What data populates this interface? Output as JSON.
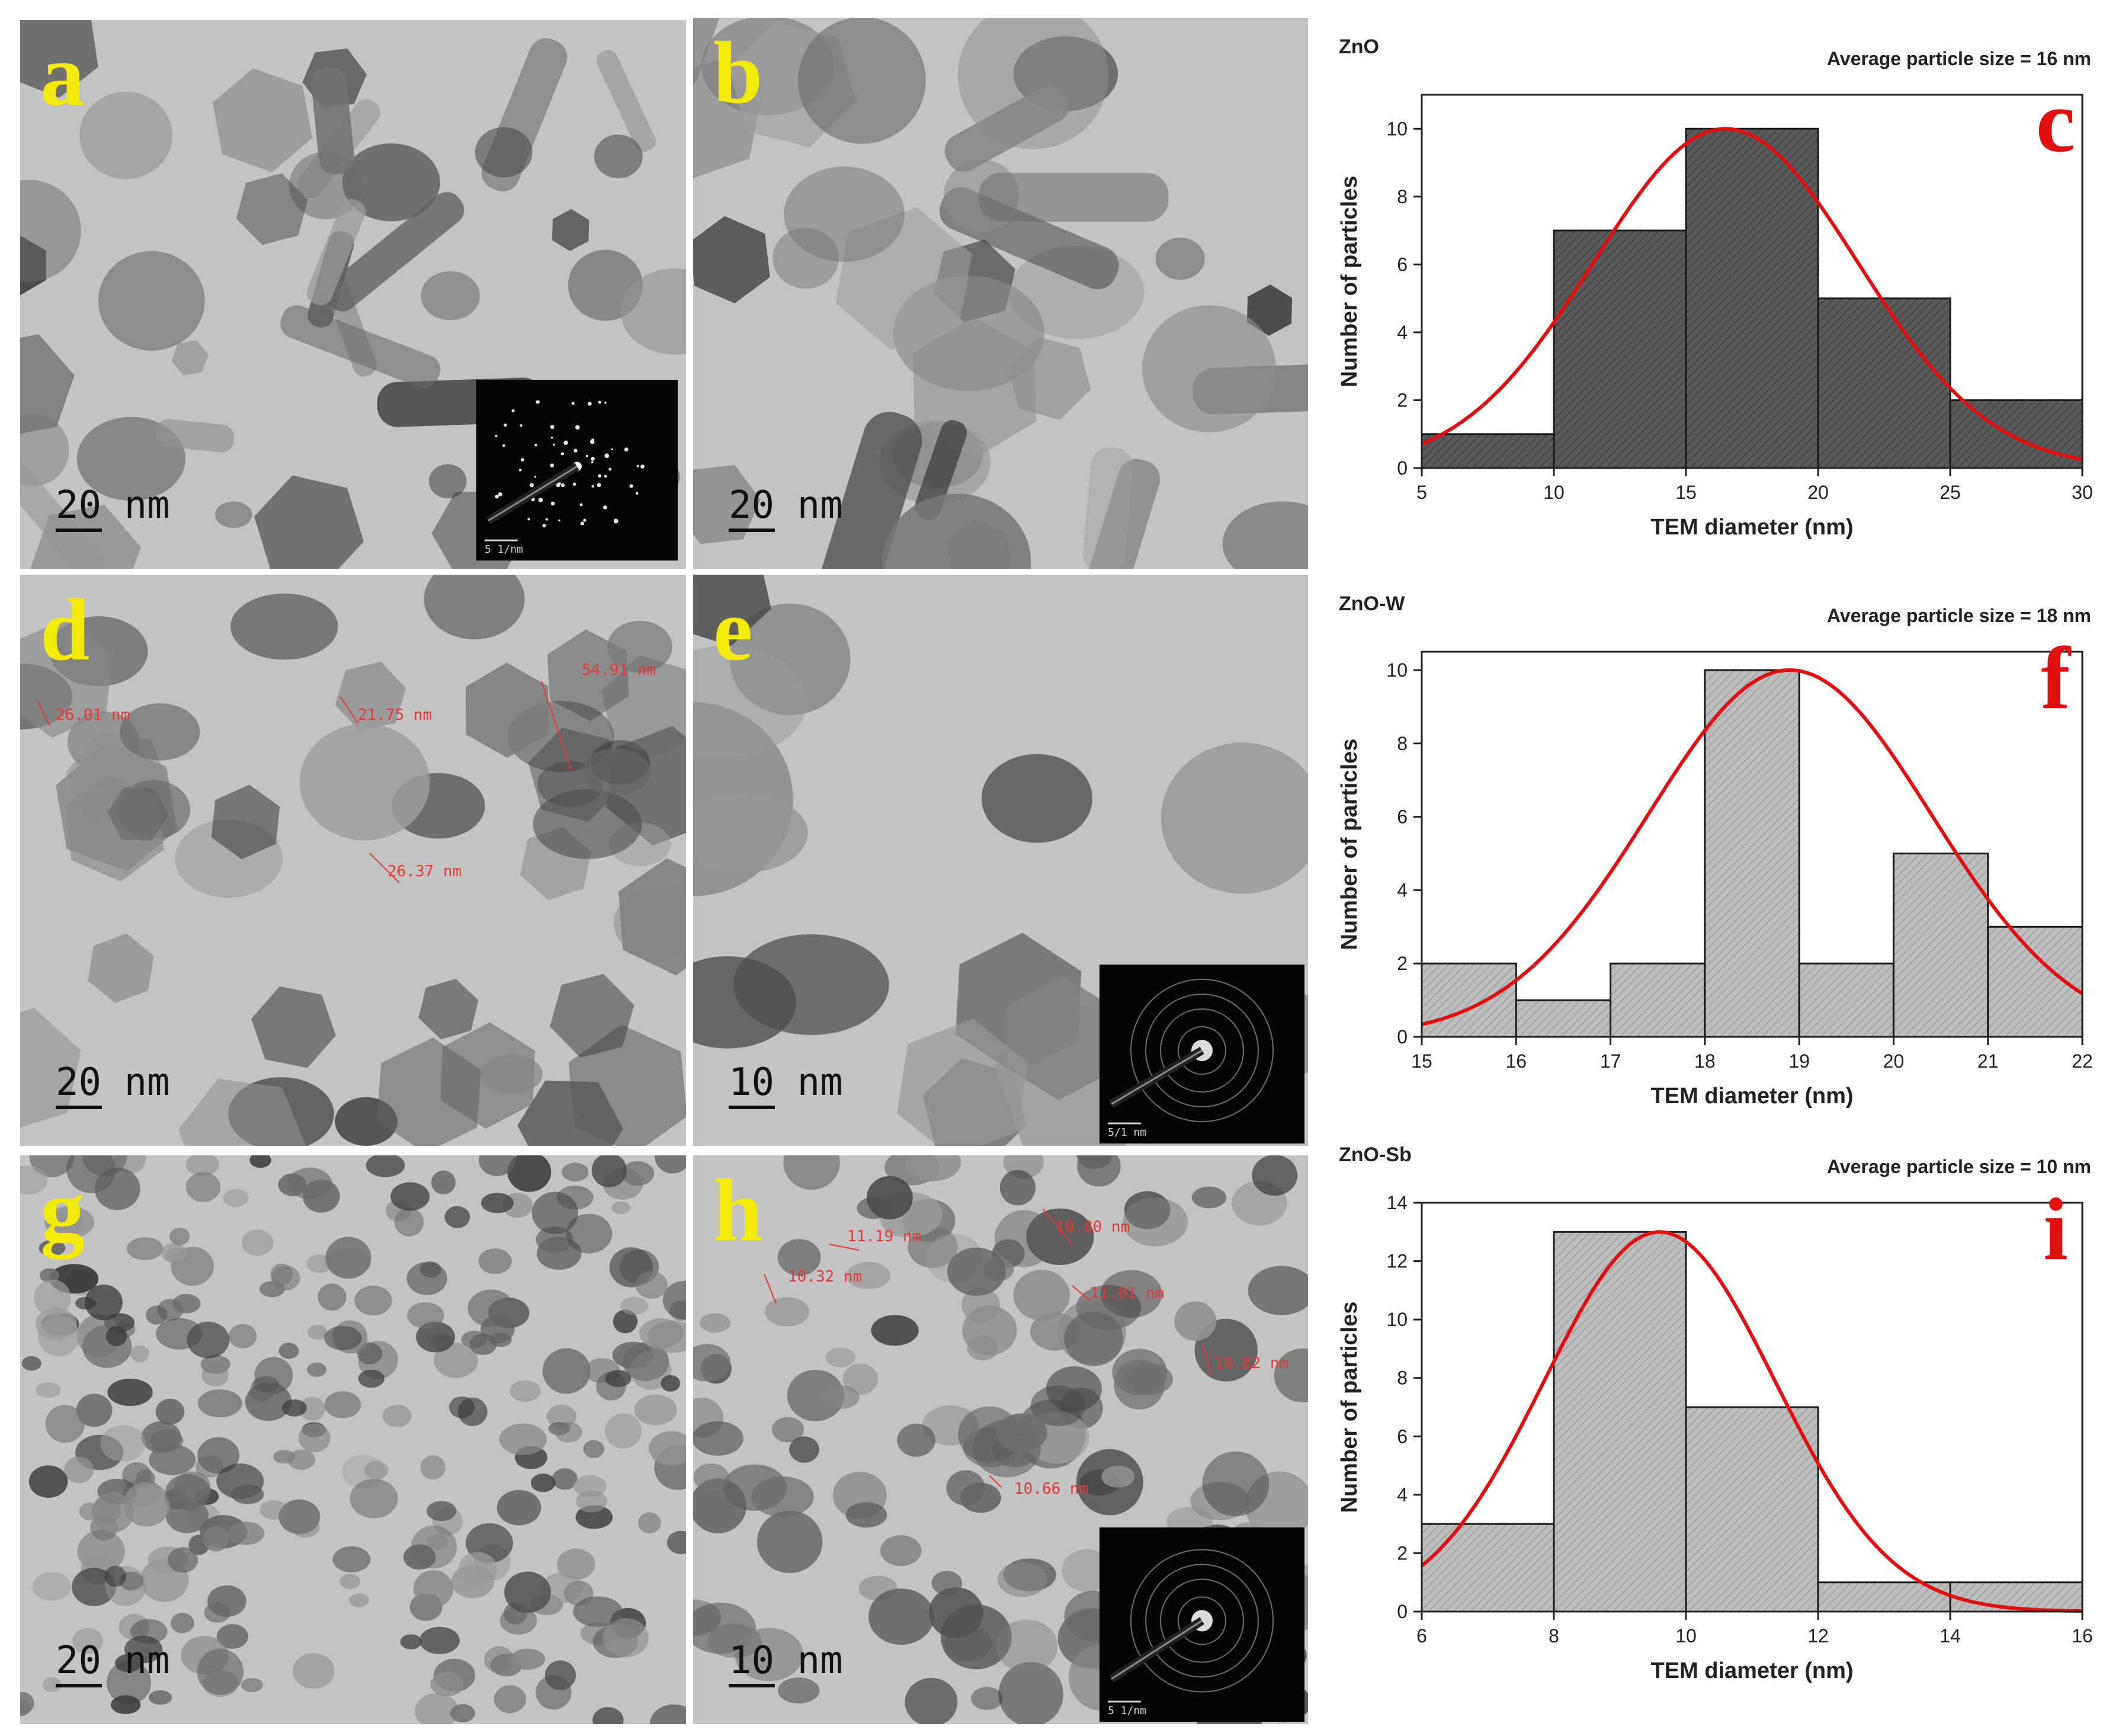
{
  "figure": {
    "panels": [
      {
        "id": "a",
        "letter": "a",
        "scale": "20 nm",
        "inset": {
          "scale": "5 1/nm"
        },
        "measurements": []
      },
      {
        "id": "b",
        "letter": "b",
        "scale": "20 nm",
        "measurements": []
      },
      {
        "id": "d",
        "letter": "d",
        "scale": "20 nm",
        "measurements": [
          "26.01 nm",
          "21.75 nm",
          "54.91 nm",
          "26.37 nm"
        ]
      },
      {
        "id": "e",
        "letter": "e",
        "scale": "10 nm",
        "inset": {
          "scale": "5/1 nm"
        },
        "measurements": []
      },
      {
        "id": "g",
        "letter": "g",
        "scale": "20 nm",
        "measurements": []
      },
      {
        "id": "h",
        "letter": "h",
        "scale": "10 nm",
        "inset": {
          "scale": "5 1/nm"
        },
        "measurements": [
          "11.19 nm",
          "10.80 nm",
          "10.32 nm",
          "11.01 nm",
          "10.82 nm",
          "10.66 nm"
        ]
      }
    ],
    "colors": {
      "bar_fill_dark": "#5a5a5a",
      "bar_fill_light": "#bdbdbd",
      "fit_curve": "#e01010",
      "panel_letter_tem": "#f4ea0a",
      "panel_letter_chart": "#e01010"
    }
  },
  "chart_data": [
    {
      "panel": "c",
      "type": "bar",
      "title": "ZnO",
      "annotation": "Average particle size = 16 nm",
      "xlabel": "TEM diameter (nm)",
      "ylabel": "Number of particles",
      "bin_edges": [
        5,
        10,
        15,
        20,
        25,
        30
      ],
      "values": [
        1,
        7,
        10,
        5,
        2
      ],
      "xlim": [
        5,
        30
      ],
      "ylim": [
        0,
        11
      ],
      "xticks": [
        5,
        10,
        15,
        20,
        25,
        30
      ],
      "yticks": [
        0,
        2,
        4,
        6,
        8,
        10
      ],
      "fit": {
        "type": "gaussian",
        "peak": 10,
        "center": 16.5,
        "sigma": 5.0
      },
      "bar_style": "dark hatched"
    },
    {
      "panel": "f",
      "type": "bar",
      "title": "ZnO-W",
      "annotation": "Average particle size = 18 nm",
      "xlabel": "TEM diameter (nm)",
      "ylabel": "Number of particles",
      "bin_edges": [
        15,
        16,
        17,
        18,
        19,
        20,
        21,
        22
      ],
      "values": [
        2,
        1,
        2,
        10,
        2,
        5,
        3
      ],
      "xlim": [
        15,
        22
      ],
      "ylim": [
        0,
        10.5
      ],
      "xticks": [
        15,
        16,
        17,
        18,
        19,
        20,
        21,
        22
      ],
      "yticks": [
        0,
        2,
        4,
        6,
        8,
        10
      ],
      "fit": {
        "type": "gaussian",
        "peak": 10,
        "center": 18.9,
        "sigma": 1.5
      },
      "bar_style": "light hatched"
    },
    {
      "panel": "i",
      "type": "bar",
      "title": "ZnO-Sb",
      "annotation": "Average particle size = 10 nm",
      "xlabel": "TEM diameter (nm)",
      "ylabel": "Number of particles",
      "bin_edges": [
        6,
        8,
        10,
        12,
        14,
        16
      ],
      "values": [
        3,
        13,
        7,
        1,
        1
      ],
      "xlim": [
        6,
        16
      ],
      "ylim": [
        0,
        14
      ],
      "xticks": [
        6,
        8,
        10,
        12,
        14,
        16
      ],
      "yticks": [
        0,
        2,
        4,
        6,
        8,
        10,
        12,
        14
      ],
      "fit": {
        "type": "gaussian",
        "peak": 13,
        "center": 9.6,
        "sigma": 1.75
      },
      "bar_style": "light hatched"
    }
  ],
  "chart_letters": [
    "c",
    "f",
    "i"
  ]
}
